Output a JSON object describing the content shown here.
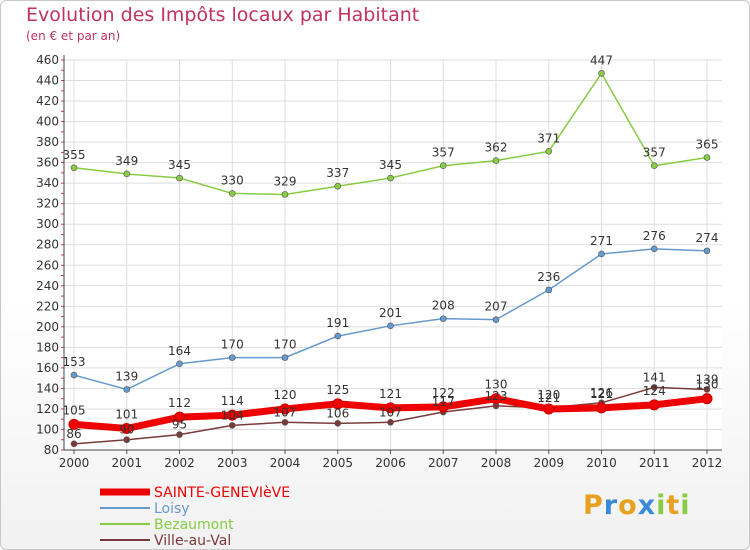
{
  "header": {
    "title": "Evolution des Impôts locaux par Habitant",
    "subtitle": "(en € et par an)"
  },
  "chart_data": {
    "type": "line",
    "title": "Evolution des Impôts locaux par Habitant",
    "subtitle": "(en € et par an)",
    "xlabel": "",
    "ylabel": "",
    "ylim": [
      80,
      460
    ],
    "ytick_step": 20,
    "yticks": [
      "80",
      "100",
      "120",
      "140",
      "160",
      "180",
      "200",
      "220",
      "240",
      "260",
      "280",
      "300",
      "320",
      "340",
      "360",
      "380",
      "400",
      "420",
      "440",
      "460"
    ],
    "categories": [
      "2000",
      "2001",
      "2002",
      "2003",
      "2004",
      "2005",
      "2006",
      "2007",
      "2008",
      "2009",
      "2010",
      "2011",
      "2012"
    ],
    "grid": true,
    "legend_position": "bottom-left",
    "series": [
      {
        "name": "SAINTE-GENEVIèVE",
        "color": "#ee0000",
        "values": [
          105,
          101,
          112,
          114,
          120,
          125,
          121,
          122,
          130,
          120,
          121,
          124,
          130
        ],
        "labels": [
          "105",
          "101",
          "112",
          "114",
          "120",
          "125",
          "121",
          "122",
          "130",
          "120",
          "121",
          "124",
          "130"
        ]
      },
      {
        "name": "Loisy",
        "color": "#6699cc",
        "values": [
          153,
          139,
          164,
          170,
          170,
          191,
          201,
          208,
          207,
          236,
          271,
          276,
          274
        ],
        "labels": [
          "153",
          "139",
          "164",
          "170",
          "170",
          "191",
          "201",
          "208",
          "207",
          "236",
          "271",
          "276",
          "274"
        ]
      },
      {
        "name": "Bezaumont",
        "color": "#88cc44",
        "values": [
          355,
          349,
          345,
          330,
          329,
          337,
          345,
          357,
          362,
          371,
          447,
          357,
          365
        ],
        "labels": [
          "355",
          "349",
          "345",
          "330",
          "329",
          "337",
          "345",
          "357",
          "362",
          "371",
          "447",
          "357",
          "365"
        ]
      },
      {
        "name": "Ville-au-Val",
        "color": "#7a3a3a",
        "values": [
          86,
          90,
          95,
          104,
          107,
          106,
          107,
          117,
          123,
          121,
          126,
          141,
          139
        ],
        "labels": [
          "86",
          "90",
          "95",
          "104",
          "107",
          "106",
          "107",
          "117",
          "123",
          "121",
          "126",
          "141",
          "139"
        ]
      }
    ]
  },
  "logo": {
    "letters": [
      "P",
      "r",
      "o",
      "x",
      "i",
      "t",
      "i"
    ],
    "colors": [
      "#e8a020",
      "#3a8ad8",
      "#e8a020",
      "#3a8ad8",
      "#88cc44",
      "#e8a020",
      "#88cc44"
    ]
  }
}
